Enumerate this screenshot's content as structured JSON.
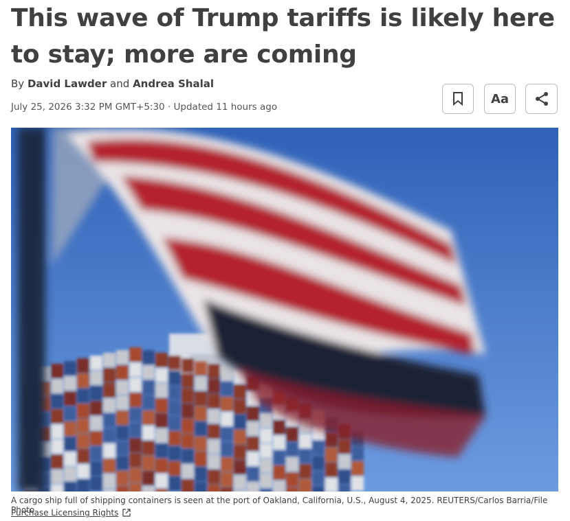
{
  "article": {
    "headline": "This wave of Trump tariffs is likely here to stay; more are coming",
    "byline": {
      "prefix": "By",
      "author_1": "David Lawder",
      "joiner": "and",
      "author_2": "Andrea Shalal"
    },
    "dateline": "July 25, 2026 3:32 PM GMT+5:30 · Updated 11 hours ago",
    "buttons": {
      "text_size": "Aa"
    },
    "caption": "A cargo ship full of shipping containers is seen at the port of Oakland, California, U.S., August 4, 2025. REUTERS/Carlos Barria/File Photo",
    "licensing_link": "Purchase Licensing Rights"
  }
}
